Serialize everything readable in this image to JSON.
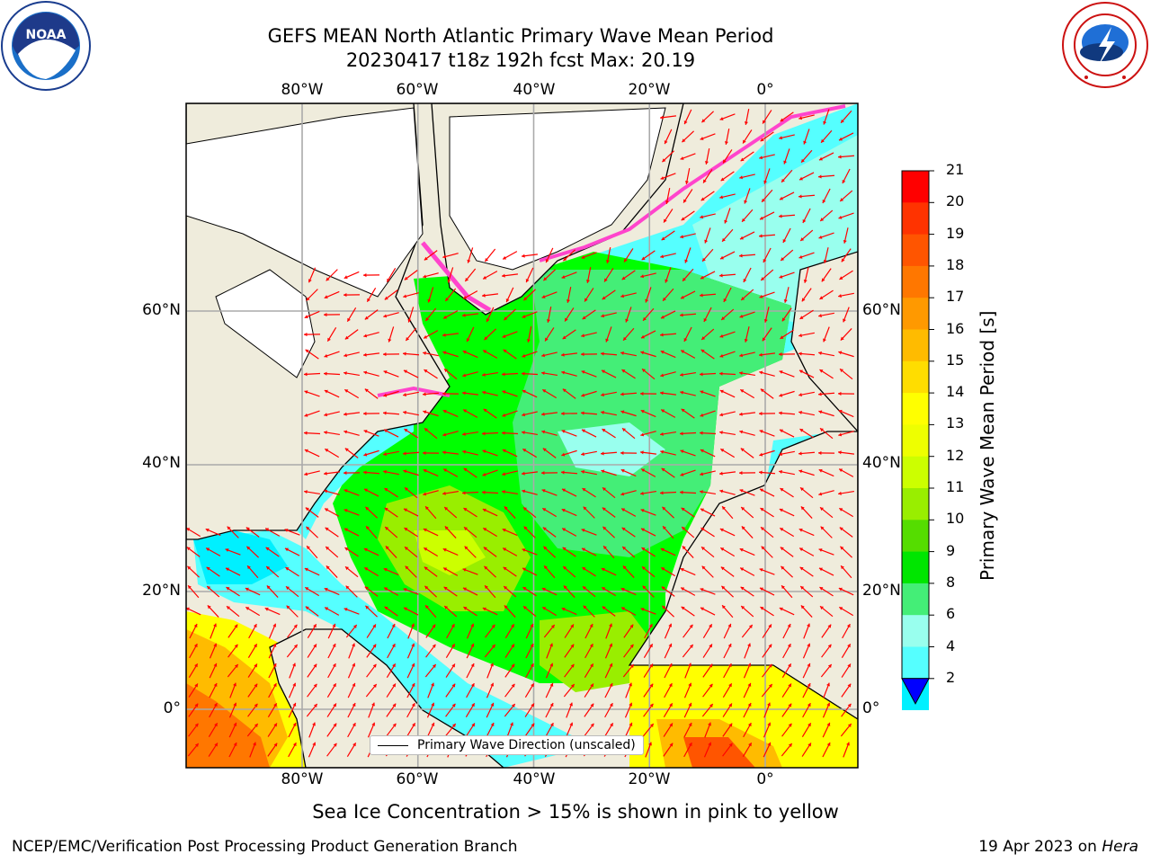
{
  "header": {
    "title_line1": "GEFS MEAN North Atlantic Primary Wave Mean Period",
    "title_line2": "20230417 t18z 192h fcst   Max: 20.19"
  },
  "logos": {
    "left": {
      "name": "noaa-logo",
      "text": "NOAA",
      "ring_text": "NATIONAL OCEANIC AND ATMOSPHERIC ADMINISTRATION · U.S. DEPARTMENT OF COMMERCE"
    },
    "right": {
      "name": "nws-logo",
      "ring_text": "NATIONAL WEATHER SERVICE"
    }
  },
  "map": {
    "lon_ticks": [
      "80°W",
      "60°W",
      "40°W",
      "20°W",
      "0°"
    ],
    "lat_ticks": [
      "60°N",
      "40°N",
      "20°N",
      "0°"
    ],
    "lon_range": [
      -100,
      15
    ],
    "lat_range": [
      -8,
      80
    ],
    "legend_label": "Primary Wave Direction (unscaled)",
    "vector_color": "#ff0000",
    "land_color": "#efecdc",
    "ice_color": "#ffffff"
  },
  "colorbar": {
    "title": "Primary Wave Mean Period [s]",
    "ticks": [
      "21",
      "20",
      "19",
      "18",
      "17",
      "16",
      "15",
      "14",
      "13",
      "12",
      "11",
      "10",
      "9",
      "8",
      "6",
      "4",
      "2"
    ],
    "colors": [
      "#ff0000",
      "#ff3300",
      "#ff5500",
      "#ff7700",
      "#ff9900",
      "#ffbb00",
      "#ffdd00",
      "#ffff00",
      "#eeff00",
      "#ccff00",
      "#99ee00",
      "#55dd00",
      "#00e600",
      "#44ee77",
      "#99ffee",
      "#55ffff",
      "#00f0ff",
      "#00ccff",
      "#0077ff"
    ],
    "min_arrow_color": "#0000ff"
  },
  "caption": "Sea Ice Concentration > 15% is shown in pink to yellow",
  "footer": {
    "left": "NCEP/EMC/Verification Post Processing Product Generation Branch",
    "right_date": "19 Apr 2023 on ",
    "right_machine": "Hera"
  }
}
